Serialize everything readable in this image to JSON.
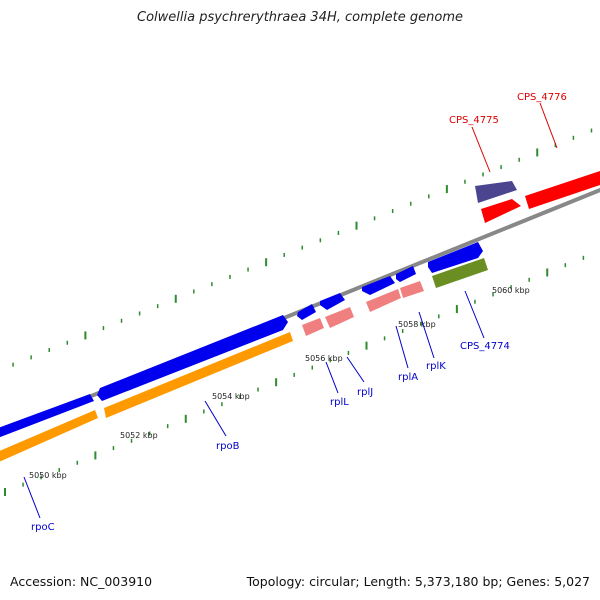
{
  "title": "Colwellia psychrerythraea 34H, complete genome",
  "footer": {
    "accession": "Accession: NC_003910",
    "summary": "Topology: circular; Length: 5,373,180 bp; Genes: 5,027"
  },
  "kbp_labels": [
    "5050 kbp",
    "5052 kbp",
    "5054 kbp",
    "5056 kbp",
    "5058 kbp",
    "5060 kbp"
  ],
  "genes": [
    {
      "name": "rpoC",
      "color": "#0000cc"
    },
    {
      "name": "rpoB",
      "color": "#0000cc"
    },
    {
      "name": "rplL",
      "color": "#0000cc"
    },
    {
      "name": "rplJ",
      "color": "#0000cc"
    },
    {
      "name": "rplA",
      "color": "#0000cc"
    },
    {
      "name": "rplK",
      "color": "#0000cc"
    },
    {
      "name": "CPS_4774",
      "color": "#0000cc"
    },
    {
      "name": "CPS_4775",
      "color": "#dd0000"
    },
    {
      "name": "CPS_4776",
      "color": "#dd0000"
    }
  ],
  "colors": {
    "backbone": "#888888",
    "cds_blue": "#0000ee",
    "gene_orange": "#ff9900",
    "gene_pink": "#f08080",
    "gene_red": "#ff0000",
    "gene_purple": "#4b4590",
    "gene_olive": "#6b8e23",
    "tick_green": "#2e8b2e"
  }
}
